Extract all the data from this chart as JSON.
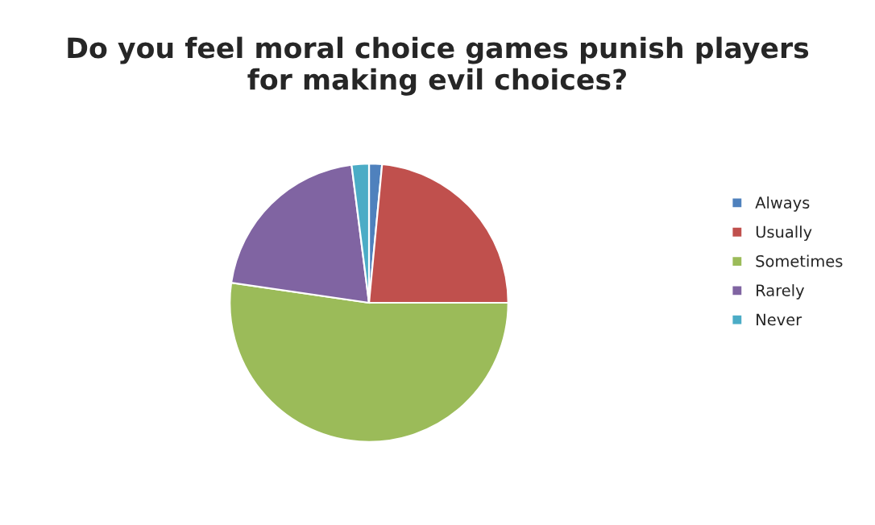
{
  "chart_data": {
    "type": "pie",
    "title": "Do you feel moral choice games punish players for making evil choices?",
    "categories": [
      "Always",
      "Usually",
      "Sometimes",
      "Rarely",
      "Never"
    ],
    "values": [
      1.5,
      23.5,
      52.3,
      20.7,
      2
    ],
    "colors": [
      "#4f81bd",
      "#c0504d",
      "#9bbb59",
      "#8064a2",
      "#4bacc6"
    ],
    "legend": "right"
  }
}
